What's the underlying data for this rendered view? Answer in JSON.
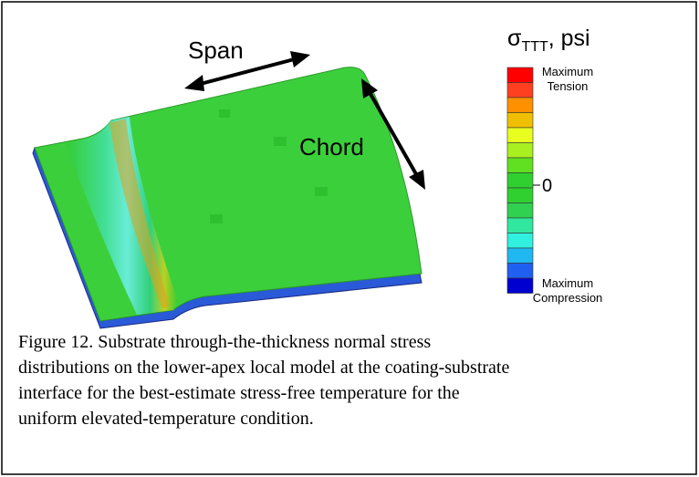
{
  "figure": {
    "labels": {
      "span": "Span",
      "chord": "Chord"
    },
    "legend": {
      "title": {
        "symbol": "σ",
        "subscript": "TTT",
        "suffix": ", psi"
      },
      "top_label": [
        "Maximum",
        "Tension"
      ],
      "middle_label": "0",
      "bottom_label": [
        "Maximum",
        "Compression"
      ]
    },
    "caption": [
      "Figure 12. Substrate through-the-thickness normal stress",
      "distributions on the lower-apex local model at the coating-substrate",
      "interface for the best-estimate stress-free temperature for the",
      "uniform elevated-temperature condition."
    ]
  }
}
